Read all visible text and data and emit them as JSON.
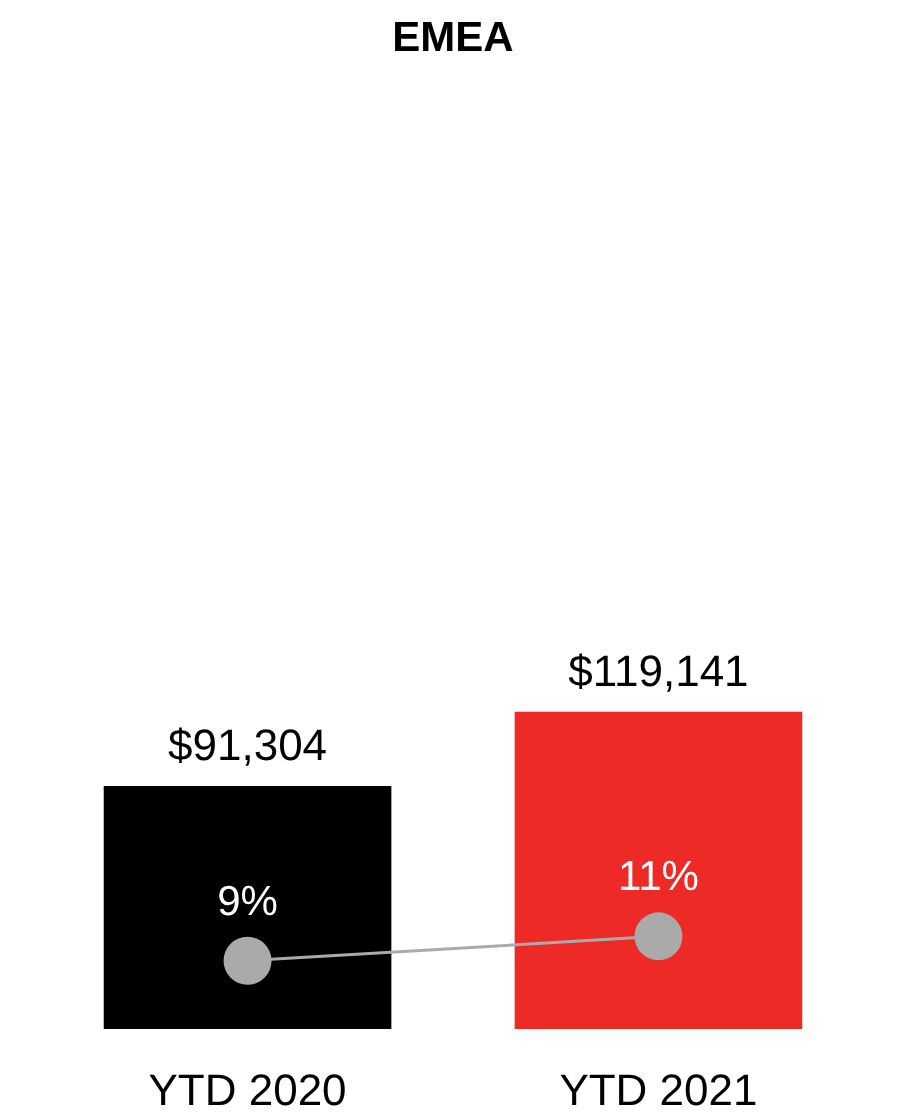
{
  "chart_data": {
    "type": "bar",
    "title": "EMEA",
    "categories": [
      "YTD 2020",
      "YTD 2021"
    ],
    "tick_labels": "x",
    "grid": false,
    "series": [
      {
        "colors": [
          "#000000",
          "#ee2a27"
        ],
        "values": [
          91304,
          119141
        ],
        "value_labels": [
          "$91,304",
          "$119,141"
        ]
      },
      {
        "type": "line",
        "axis": "y2",
        "color": "#aaaaaa",
        "marker": "circle",
        "line_style": "solid",
        "values": [
          9,
          11
        ],
        "value_labels": [
          "9%",
          "11%"
        ]
      }
    ]
  }
}
